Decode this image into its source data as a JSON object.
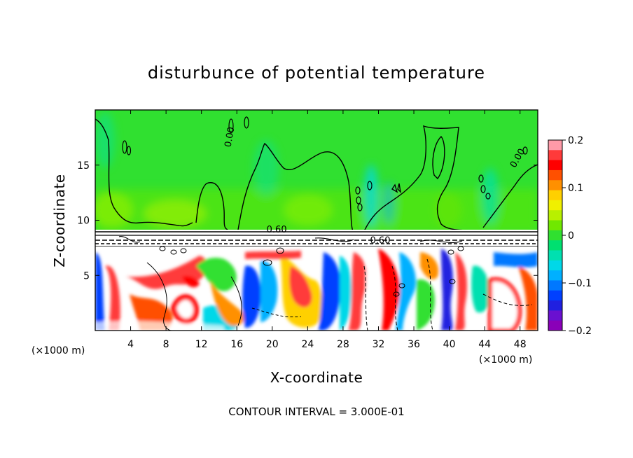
{
  "chart_data": {
    "type": "heatmap",
    "title": "disturbunce of potential temperature",
    "xlabel": "X-coordinate",
    "ylabel": "Z-coordinate",
    "x_unit_left": "(×1000 m)",
    "x_unit_right": "(×1000 m)",
    "xlim": [
      0,
      50
    ],
    "ylim": [
      0,
      20
    ],
    "x_ticks": [
      4,
      8,
      12,
      16,
      20,
      24,
      28,
      32,
      36,
      40,
      44,
      48
    ],
    "y_ticks": [
      5,
      10,
      15
    ],
    "footer": "CONTOUR INTERVAL = 3.000E-01",
    "contour_labels": [
      {
        "text": "0.00",
        "x": 15.5,
        "z": 17.5,
        "rotate": -80
      },
      {
        "text": "0.00",
        "x": 48.0,
        "z": 15.5,
        "rotate": -60
      },
      {
        "text": "0.60",
        "x": 20.5,
        "z": 8.9,
        "rotate": 0
      },
      {
        "text": "0.60",
        "x": 32.2,
        "z": 7.9,
        "rotate": 0
      }
    ],
    "colorbar": {
      "range": [
        -0.2,
        0.2
      ],
      "ticks": [
        0.2,
        0.1,
        0,
        -0.1,
        -0.2
      ],
      "tick_labels": [
        "0.2",
        "0.1",
        "0",
        "−0.1",
        "−0.2"
      ],
      "colors": [
        "#ff9aa8",
        "#ff3a3a",
        "#ff0000",
        "#ff5000",
        "#ff9000",
        "#ffd000",
        "#f0f000",
        "#b8f000",
        "#70e800",
        "#30e030",
        "#00e070",
        "#00e0b0",
        "#00d8e8",
        "#00b0ff",
        "#0078ff",
        "#0040ff",
        "#2020e0",
        "#6a10d0",
        "#8a00b8"
      ]
    },
    "upper_layer": {
      "z_range": [
        9,
        20
      ],
      "value": 0.0,
      "color": "#30e030"
    },
    "inversion_layer": {
      "z_range": [
        7.8,
        9.0
      ],
      "value": 0.6
    },
    "lower_layer": {
      "z_range": [
        0,
        7.8
      ],
      "pattern": "turbulent"
    }
  }
}
